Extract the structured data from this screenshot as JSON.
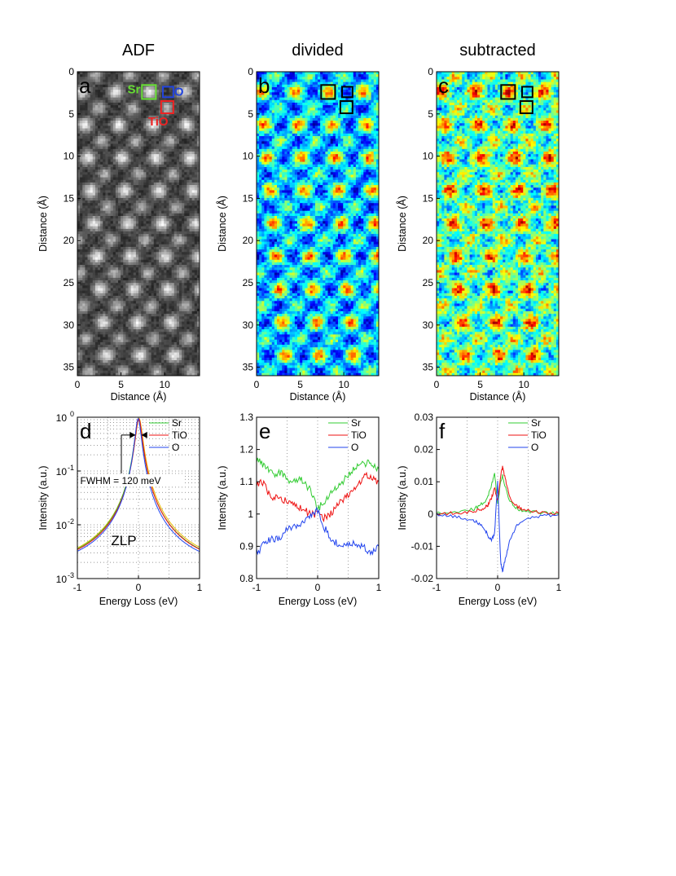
{
  "figure": {
    "maps": [
      {
        "id": "a",
        "title": "ADF",
        "letter": "a",
        "colormap": "gray",
        "xlabel": "Distance (Å)",
        "ylabel": "Distance (Å)",
        "xticks": [
          "0",
          "5",
          "10"
        ],
        "yticks": [
          "0",
          "5",
          "10",
          "15",
          "20",
          "25",
          "30",
          "35"
        ],
        "xlim": [
          0,
          14
        ],
        "ylim": [
          0,
          36
        ],
        "boxes": [
          {
            "label": "Sr",
            "x": 8.2,
            "y": 2.4,
            "size": 1.6,
            "color": "#66dd33"
          },
          {
            "label": "O",
            "x": 10.4,
            "y": 2.4,
            "size": 1.2,
            "color": "#2244dd"
          },
          {
            "label": "TiO",
            "x": 10.3,
            "y": 4.2,
            "size": 1.4,
            "color": "#ee2222"
          }
        ]
      },
      {
        "id": "b",
        "title": "divided",
        "letter": "b",
        "colormap": "jet",
        "xlabel": "Distance (Å)",
        "ylabel": "Distance (Å)",
        "xticks": [
          "0",
          "5",
          "10"
        ],
        "yticks": [
          "0",
          "5",
          "10",
          "15",
          "20",
          "25",
          "30",
          "35"
        ],
        "xlim": [
          0,
          14
        ],
        "ylim": [
          0,
          36
        ],
        "boxes": [
          {
            "label": "",
            "x": 8.2,
            "y": 2.4,
            "size": 1.6,
            "color": "#000000"
          },
          {
            "label": "",
            "x": 10.4,
            "y": 2.4,
            "size": 1.2,
            "color": "#000000"
          },
          {
            "label": "",
            "x": 10.3,
            "y": 4.2,
            "size": 1.4,
            "color": "#000000"
          }
        ]
      },
      {
        "id": "c",
        "title": "subtracted",
        "letter": "c",
        "colormap": "jet",
        "xlabel": "Distance (Å)",
        "ylabel": "Distance (Å)",
        "xticks": [
          "0",
          "5",
          "10"
        ],
        "yticks": [
          "0",
          "5",
          "10",
          "15",
          "20",
          "25",
          "30",
          "35"
        ],
        "xlim": [
          0,
          14
        ],
        "ylim": [
          0,
          36
        ],
        "boxes": [
          {
            "label": "",
            "x": 8.2,
            "y": 2.4,
            "size": 1.6,
            "color": "#000000"
          },
          {
            "label": "",
            "x": 10.4,
            "y": 2.4,
            "size": 1.2,
            "color": "#000000"
          },
          {
            "label": "",
            "x": 10.3,
            "y": 4.2,
            "size": 1.4,
            "color": "#000000"
          }
        ]
      }
    ],
    "colors": {
      "Sr": "#33cc33",
      "TiO": "#ee1111",
      "O": "#2244ee",
      "zlp_extra": "#eebb00"
    }
  },
  "chart_data": [
    {
      "type": "line",
      "id": "d",
      "letter": "d",
      "title": "",
      "xlabel": "Energy Loss (eV)",
      "ylabel": "Intensity (a.u.)",
      "xlim": [
        -1,
        1
      ],
      "ylim": [
        0.001,
        1
      ],
      "yscale": "log",
      "xticks": [
        -1,
        0,
        1
      ],
      "xtick_labels": [
        "-1",
        "0",
        "1"
      ],
      "yticks": [
        0.001,
        0.01,
        0.1,
        1
      ],
      "ytick_labels": [
        {
          "base": "10",
          "exp": "-3"
        },
        {
          "base": "10",
          "exp": "-2"
        },
        {
          "base": "10",
          "exp": "-1"
        },
        {
          "base": "10",
          "exp": "0"
        }
      ],
      "grid": "dotted",
      "legend": "top-right",
      "annotations": [
        "FWHM = 120 meV",
        "ZLP"
      ],
      "series": [
        {
          "name": "Sr",
          "values": "zlp"
        },
        {
          "name": "TiO",
          "values": "zlp"
        },
        {
          "name": "O",
          "values": "zlp"
        }
      ]
    },
    {
      "type": "line",
      "id": "e",
      "letter": "e",
      "title": "",
      "xlabel": "Energy Loss (eV)",
      "ylabel": "Intensity (a.u.)",
      "xlim": [
        -1,
        1
      ],
      "ylim": [
        0.8,
        1.3
      ],
      "xticks": [
        -1,
        0,
        1
      ],
      "xtick_labels": [
        "-1",
        "0",
        "1"
      ],
      "yticks": [
        0.8,
        0.9,
        1.0,
        1.1,
        1.2,
        1.3
      ],
      "ytick_labels": [
        "0.8",
        "0.9",
        "1",
        "1.1",
        "1.2",
        "1.3"
      ],
      "grid": "dotted-vertical",
      "legend": "top-right",
      "x": [
        -1.0,
        -0.9,
        -0.8,
        -0.7,
        -0.6,
        -0.5,
        -0.4,
        -0.3,
        -0.2,
        -0.1,
        0.0,
        0.1,
        0.2,
        0.3,
        0.4,
        0.5,
        0.6,
        0.7,
        0.8,
        0.9,
        1.0
      ],
      "series": [
        {
          "name": "Sr",
          "values": [
            1.17,
            1.15,
            1.14,
            1.12,
            1.13,
            1.11,
            1.1,
            1.11,
            1.09,
            1.07,
            1.01,
            1.04,
            1.06,
            1.08,
            1.1,
            1.12,
            1.14,
            1.15,
            1.16,
            1.15,
            1.14
          ]
        },
        {
          "name": "TiO",
          "values": [
            1.09,
            1.1,
            1.06,
            1.05,
            1.05,
            1.04,
            1.03,
            1.02,
            1.01,
            1.0,
            1.0,
            0.99,
            1.0,
            1.02,
            1.04,
            1.06,
            1.08,
            1.1,
            1.12,
            1.11,
            1.1
          ]
        },
        {
          "name": "O",
          "values": [
            0.88,
            0.9,
            0.92,
            0.92,
            0.93,
            0.95,
            0.96,
            0.97,
            0.98,
            1.0,
            1.01,
            0.96,
            0.93,
            0.91,
            0.9,
            0.9,
            0.91,
            0.9,
            0.89,
            0.88,
            0.9
          ]
        }
      ]
    },
    {
      "type": "line",
      "id": "f",
      "letter": "f",
      "title": "",
      "xlabel": "Energy Loss (eV)",
      "ylabel": "Intensity (a.u.)",
      "xlim": [
        -1,
        1
      ],
      "ylim": [
        -0.02,
        0.03
      ],
      "xticks": [
        -1,
        0,
        1
      ],
      "xtick_labels": [
        "-1",
        "0",
        "1"
      ],
      "yticks": [
        -0.02,
        -0.01,
        0,
        0.01,
        0.02,
        0.03
      ],
      "ytick_labels": [
        "-0.02",
        "-0.01",
        "0",
        "0.01",
        "0.02",
        "0.03"
      ],
      "grid": "dotted-vertical",
      "legend": "top-right",
      "x": [
        -1.0,
        -0.8,
        -0.6,
        -0.4,
        -0.3,
        -0.2,
        -0.15,
        -0.1,
        -0.05,
        0.0,
        0.05,
        0.08,
        0.1,
        0.15,
        0.2,
        0.3,
        0.4,
        0.6,
        0.8,
        1.0
      ],
      "series": [
        {
          "name": "Sr",
          "values": [
            0.0002,
            0.0004,
            0.0008,
            0.0015,
            0.0025,
            0.004,
            0.006,
            0.009,
            0.013,
            0.003,
            0.01,
            0.012,
            0.01,
            0.007,
            0.004,
            0.002,
            0.001,
            0.0006,
            0.0003,
            0.0002
          ]
        },
        {
          "name": "TiO",
          "values": [
            0.0001,
            0.0002,
            0.0004,
            0.0008,
            0.0012,
            0.002,
            0.003,
            0.005,
            0.008,
            0.004,
            0.012,
            0.0145,
            0.013,
            0.009,
            0.005,
            0.0025,
            0.0015,
            0.0008,
            0.0004,
            0.0002
          ]
        },
        {
          "name": "O",
          "values": [
            -0.0002,
            -0.0005,
            -0.001,
            -0.002,
            -0.003,
            -0.005,
            -0.007,
            -0.008,
            -0.006,
            0.01,
            -0.015,
            -0.018,
            -0.016,
            -0.012,
            -0.008,
            -0.004,
            -0.002,
            -0.001,
            -0.0005,
            -0.0002
          ]
        }
      ]
    }
  ]
}
